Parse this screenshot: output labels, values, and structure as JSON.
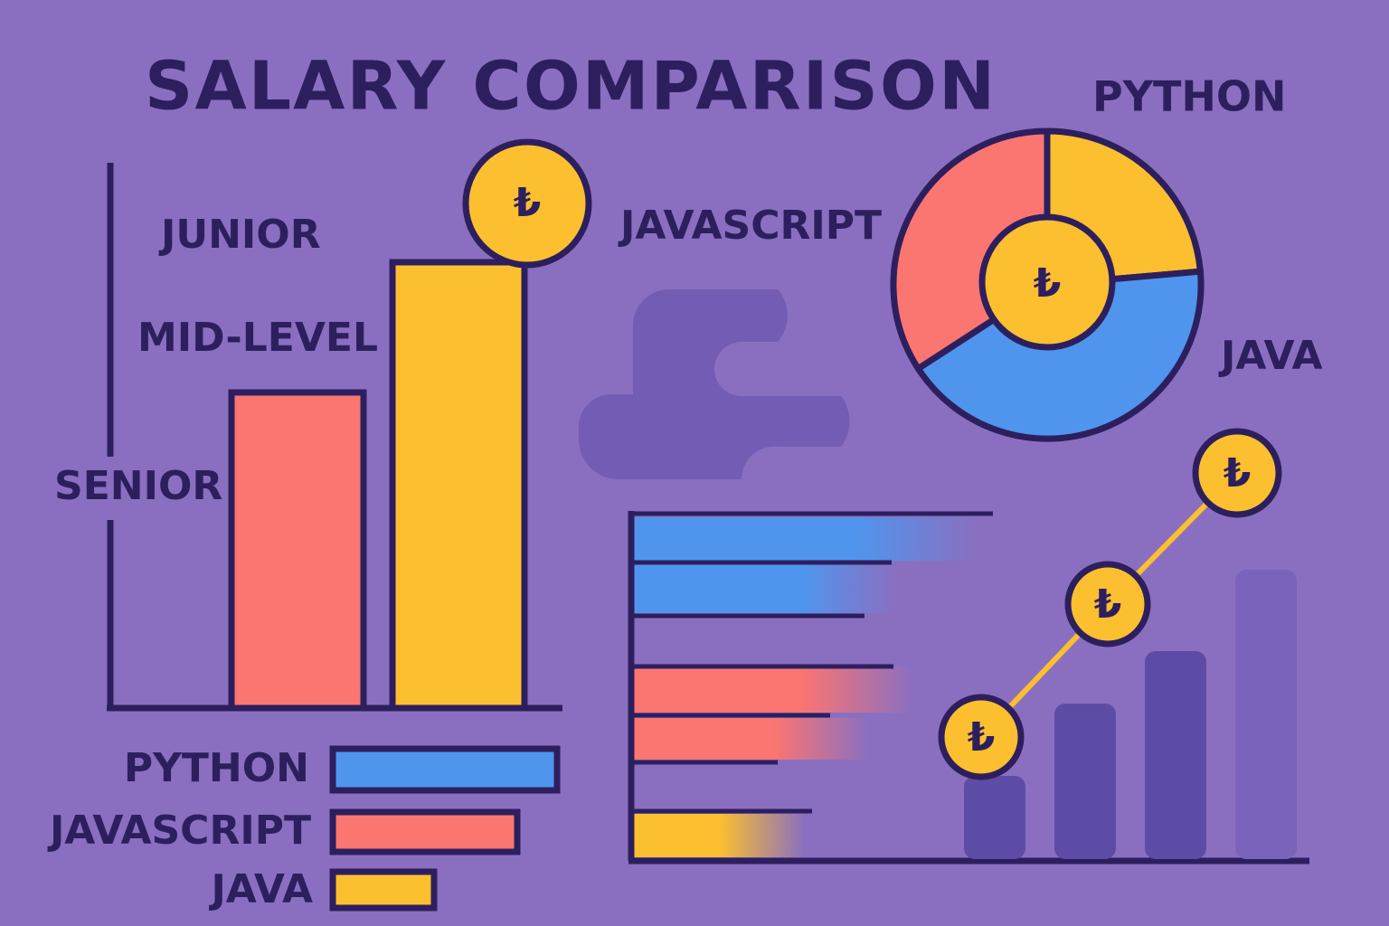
{
  "title": "SALARY COMPARISON",
  "levels": [
    "JUNIOR",
    "MID-LEVEL",
    "SENIOR"
  ],
  "legend": [
    "PYTHON",
    "JAVASCRIPT",
    "JAVA"
  ],
  "pie_labels": [
    "PYTHON",
    "JAVASCRIPT",
    "JAVA"
  ],
  "currency": "₺"
}
